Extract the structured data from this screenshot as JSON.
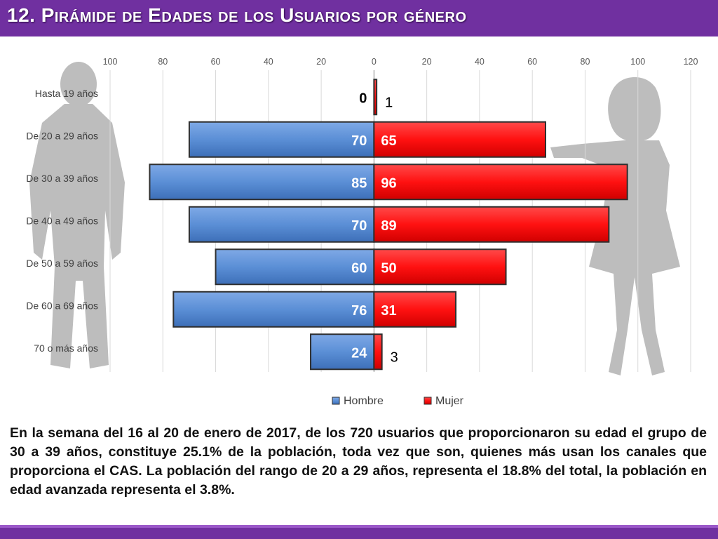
{
  "page": {
    "title": "12. Pirámide de Edades de los Usuarios por género",
    "caption": "En la semana del 16 al 20 de enero de 2017, de los 720 usuarios  que proporcionaron su edad el grupo de 30 a 39 años, constituye 25.1% de la población, toda vez que son, quienes más usan los canales que proporciona el CAS. La población del rango de 20 a 29 años, representa el 18.8% del total, la población en edad avanzada representa el 3.8%."
  },
  "colors": {
    "hombre": "#5b8fd6",
    "mujer": "#ff1111",
    "title_bar": "#7030a0"
  },
  "chart_data": {
    "type": "bar",
    "orientation": "horizontal",
    "categories": [
      "Hasta 19 años",
      "De 20 a 29 años",
      "De 30 a 39 años",
      "De 40 a 49 años",
      "De 50 a 59 años",
      "De 60 a 69 años",
      "70 o más años"
    ],
    "series": [
      {
        "name": "Hombre",
        "values": [
          0,
          70,
          85,
          70,
          60,
          76,
          24
        ]
      },
      {
        "name": "Mujer",
        "values": [
          1,
          65,
          96,
          89,
          50,
          31,
          3
        ]
      }
    ],
    "x_ticks": [
      "100",
      "80",
      "60",
      "40",
      "20",
      "0",
      "20",
      "40",
      "60",
      "80",
      "100",
      "120"
    ],
    "xlim": [
      -100,
      120
    ],
    "grid": true,
    "legend_position": "bottom"
  }
}
